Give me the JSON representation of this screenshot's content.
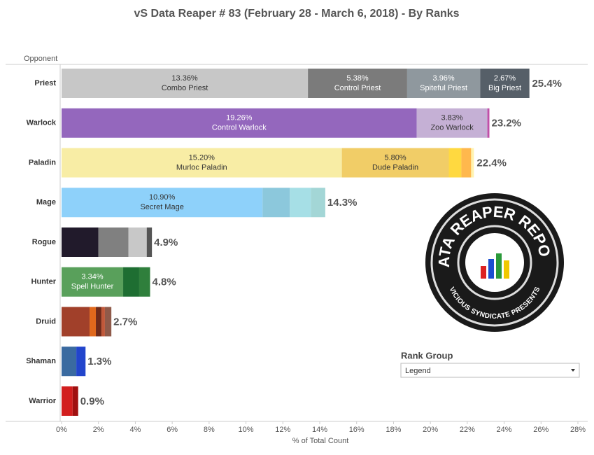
{
  "chart_data": {
    "type": "stacked_bar_horizontal",
    "title": "vS Data Reaper #  83 (February 28 - March 6, 2018) - By Ranks",
    "y_axis_label": "Opponent",
    "x_axis_label": "% of Total Count",
    "xlim": [
      0,
      28
    ],
    "xticks": [
      {
        "value": 0,
        "label": "0%"
      },
      {
        "value": 2,
        "label": "2%"
      },
      {
        "value": 4,
        "label": "4%"
      },
      {
        "value": 6,
        "label": "6%"
      },
      {
        "value": 8,
        "label": "8%"
      },
      {
        "value": 10,
        "label": "10%"
      },
      {
        "value": 12,
        "label": "12%"
      },
      {
        "value": 14,
        "label": "14%"
      },
      {
        "value": 16,
        "label": "16%"
      },
      {
        "value": 18,
        "label": "18%"
      },
      {
        "value": 20,
        "label": "20%"
      },
      {
        "value": 22,
        "label": "22%"
      },
      {
        "value": 24,
        "label": "24%"
      },
      {
        "value": 26,
        "label": "26%"
      },
      {
        "value": 28,
        "label": "28%"
      }
    ],
    "categories": [
      "Priest",
      "Warlock",
      "Paladin",
      "Mage",
      "Rogue",
      "Hunter",
      "Druid",
      "Shaman",
      "Warrior"
    ],
    "bars": [
      {
        "total": 25.4,
        "total_label": "25.4%",
        "segments": [
          {
            "name": "Combo Priest",
            "value": 13.36,
            "value_label": "13.36%",
            "color": "#c7c7c7",
            "label_color": "#333333"
          },
          {
            "name": "Control Priest",
            "value": 5.38,
            "value_label": "5.38%",
            "color": "#7b7b7b",
            "label_color": "#ffffff"
          },
          {
            "name": "Spiteful Priest",
            "value": 3.96,
            "value_label": "3.96%",
            "color": "#8f989e",
            "label_color": "#ffffff"
          },
          {
            "name": "Big Priest",
            "value": 2.67,
            "value_label": "2.67%",
            "color": "#565f68",
            "label_color": "#ffffff"
          }
        ]
      },
      {
        "total": 23.2,
        "total_label": "23.2%",
        "segments": [
          {
            "name": "Control Warlock",
            "value": 19.26,
            "value_label": "19.26%",
            "color": "#9467bd",
            "label_color": "#ffffff"
          },
          {
            "name": "Zoo Warlock",
            "value": 3.83,
            "value_label": "3.83%",
            "color": "#c5b0d5",
            "label_color": "#333333"
          },
          {
            "value": 0.11,
            "color": "#c04fa8"
          }
        ]
      },
      {
        "total": 22.4,
        "total_label": "22.4%",
        "segments": [
          {
            "name": "Murloc Paladin",
            "value": 15.2,
            "value_label": "15.20%",
            "color": "#f8eda5",
            "label_color": "#333333"
          },
          {
            "name": "Dude Paladin",
            "value": 5.8,
            "value_label": "5.80%",
            "color": "#f1cd67",
            "label_color": "#333333"
          },
          {
            "value": 0.68,
            "color": "#ffd940"
          },
          {
            "value": 0.53,
            "color": "#ffb84d"
          },
          {
            "value": 0.15,
            "color": "#fff3b0"
          }
        ]
      },
      {
        "total": 14.3,
        "total_label": "14.3%",
        "segments": [
          {
            "name": "Secret Mage",
            "value": 10.9,
            "value_label": "10.90%",
            "color": "#8ed1fa",
            "label_color": "#333333"
          },
          {
            "value": 1.48,
            "color": "#8cc8dc"
          },
          {
            "value": 1.14,
            "color": "#a6dfe6"
          },
          {
            "value": 0.78,
            "color": "#a3d6d6"
          }
        ]
      },
      {
        "total": 4.9,
        "total_label": "4.9%",
        "segments": [
          {
            "value": 2.0,
            "color": "#211a2b"
          },
          {
            "value": 1.63,
            "color": "#808080"
          },
          {
            "value": 0.99,
            "color": "#c8c8c8"
          },
          {
            "value": 0.28,
            "color": "#555555"
          }
        ]
      },
      {
        "total": 4.8,
        "total_label": "4.8%",
        "segments": [
          {
            "name": "Spell Hunter",
            "value": 3.34,
            "value_label": "3.34%",
            "color": "#59a05b",
            "label_color": "#ffffff"
          },
          {
            "value": 0.87,
            "color": "#1e6e32"
          },
          {
            "value": 0.59,
            "color": "#2f7f3c"
          }
        ]
      },
      {
        "total": 2.7,
        "total_label": "2.7%",
        "segments": [
          {
            "value": 1.52,
            "color": "#a1402a"
          },
          {
            "value": 0.34,
            "color": "#e0681c"
          },
          {
            "value": 0.3,
            "color": "#6e2a1a"
          },
          {
            "value": 0.19,
            "color": "#c0583a"
          },
          {
            "value": 0.35,
            "color": "#8f5a4a"
          }
        ]
      },
      {
        "total": 1.3,
        "total_label": "1.3%",
        "segments": [
          {
            "value": 0.8,
            "color": "#3a6aa0"
          },
          {
            "value": 0.5,
            "color": "#2245cc"
          }
        ]
      },
      {
        "total": 0.9,
        "total_label": "0.9%",
        "segments": [
          {
            "value": 0.6,
            "color": "#d21e1e"
          },
          {
            "value": 0.3,
            "color": "#a01010"
          }
        ]
      }
    ],
    "legend": {
      "title": "Rank Group",
      "dropdown": "Legend"
    },
    "logo": {
      "title": "DATA REAPER REPORT",
      "subtitle": "VICIOUS SYNDICATE PRESENTS"
    }
  }
}
